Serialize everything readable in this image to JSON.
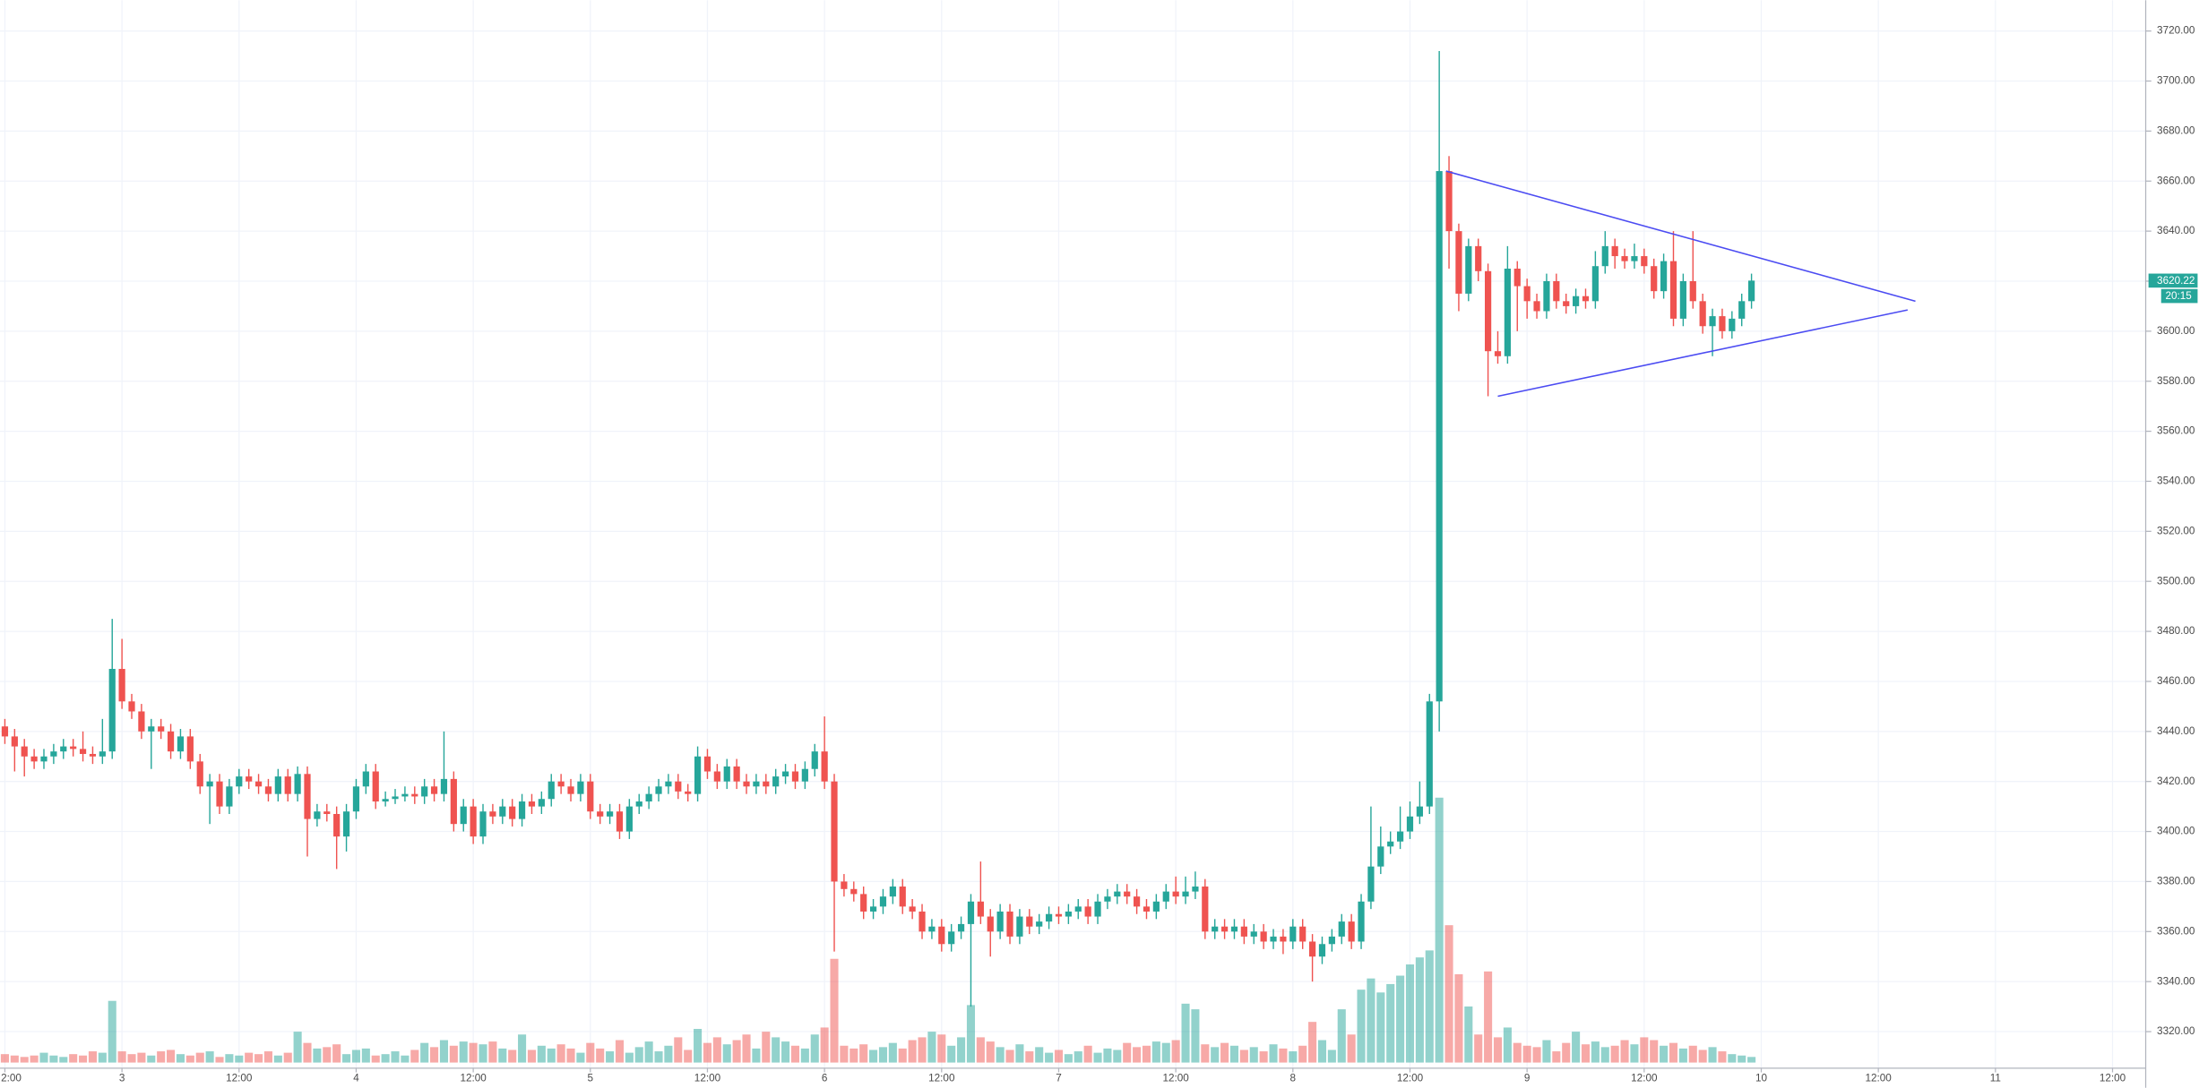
{
  "chart_data": {
    "type": "candlestick",
    "countdown": "20:15",
    "up_color": "#26a69a",
    "down_color": "#ef5350",
    "grid": true,
    "grid_color": "#f0f3fa",
    "trendline_color": "#4b4bf2",
    "xlim": [
      11.5,
      231.4
    ],
    "ylim": [
      3305.4,
      3732.3
    ],
    "xticks": [
      {
        "value": 12,
        "label": "2:00"
      },
      {
        "value": 24,
        "label": "3"
      },
      {
        "value": 36,
        "label": "12:00"
      },
      {
        "value": 48,
        "label": "4"
      },
      {
        "value": 60,
        "label": "12:00"
      },
      {
        "value": 72,
        "label": "5"
      },
      {
        "value": 84,
        "label": "12:00"
      },
      {
        "value": 96,
        "label": "6"
      },
      {
        "value": 108,
        "label": "12:00"
      },
      {
        "value": 120,
        "label": "7"
      },
      {
        "value": 132,
        "label": "12:00"
      },
      {
        "value": 144,
        "label": "8"
      },
      {
        "value": 156,
        "label": "12:00"
      },
      {
        "value": 168,
        "label": "9"
      },
      {
        "value": 180,
        "label": "12:00"
      },
      {
        "value": 192,
        "label": "10"
      },
      {
        "value": 204,
        "label": "12:00"
      },
      {
        "value": 216,
        "label": "11"
      },
      {
        "value": 228,
        "label": "12:00"
      }
    ],
    "yticks": [
      {
        "value": 3320,
        "label": "3320.00"
      },
      {
        "value": 3340,
        "label": "3340.00"
      },
      {
        "value": 3360,
        "label": "3360.00"
      },
      {
        "value": 3380,
        "label": "3380.00"
      },
      {
        "value": 3400,
        "label": "3400.00"
      },
      {
        "value": 3420,
        "label": "3420.00"
      },
      {
        "value": 3440,
        "label": "3440.00"
      },
      {
        "value": 3460,
        "label": "3460.00"
      },
      {
        "value": 3480,
        "label": "3480.00"
      },
      {
        "value": 3500,
        "label": "3500.00"
      },
      {
        "value": 3520,
        "label": "3520.00"
      },
      {
        "value": 3540,
        "label": "3540.00"
      },
      {
        "value": 3560,
        "label": "3560.00"
      },
      {
        "value": 3580,
        "label": "3580.00"
      },
      {
        "value": 3600,
        "label": "3600.00"
      },
      {
        "value": 3620,
        "label": "3620.00"
      },
      {
        "value": 3640,
        "label": "3640.00"
      },
      {
        "value": 3660,
        "label": "3660.00"
      },
      {
        "value": 3680,
        "label": "3680.00"
      },
      {
        "value": 3700,
        "label": "3700.00"
      },
      {
        "value": 3720,
        "label": "3720.00"
      }
    ],
    "x": [
      12,
      13,
      14,
      15,
      16,
      17,
      18,
      19,
      20,
      21,
      22,
      23,
      24,
      25,
      26,
      27,
      28,
      29,
      30,
      31,
      32,
      33,
      34,
      35,
      36,
      37,
      38,
      39,
      40,
      41,
      42,
      43,
      44,
      45,
      46,
      47,
      48,
      49,
      50,
      51,
      52,
      53,
      54,
      55,
      56,
      57,
      58,
      59,
      60,
      61,
      62,
      63,
      64,
      65,
      66,
      67,
      68,
      69,
      70,
      71,
      72,
      73,
      74,
      75,
      76,
      77,
      78,
      79,
      80,
      81,
      82,
      83,
      84,
      85,
      86,
      87,
      88,
      89,
      90,
      91,
      92,
      93,
      94,
      95,
      96,
      97,
      98,
      99,
      100,
      101,
      102,
      103,
      104,
      105,
      106,
      107,
      108,
      109,
      110,
      111,
      112,
      113,
      114,
      115,
      116,
      117,
      118,
      119,
      120,
      121,
      122,
      123,
      124,
      125,
      126,
      127,
      128,
      129,
      130,
      131,
      132,
      133,
      134,
      135,
      136,
      137,
      138,
      139,
      140,
      141,
      142,
      143,
      144,
      145,
      146,
      147,
      148,
      149,
      150,
      151,
      152,
      153,
      154,
      155,
      156,
      157,
      158,
      159,
      160,
      161,
      162,
      163,
      164,
      165,
      166,
      167,
      168,
      169,
      170,
      171,
      172,
      173,
      174,
      175,
      176,
      177,
      178,
      179,
      180,
      181,
      182,
      183,
      184,
      185,
      186,
      187,
      188,
      189,
      190,
      191
    ],
    "ohlc": [
      [
        3442,
        3445,
        3435,
        3438
      ],
      [
        3438,
        3441,
        3424,
        3434
      ],
      [
        3434,
        3437,
        3422,
        3430
      ],
      [
        3430,
        3433,
        3425,
        3428
      ],
      [
        3428,
        3433,
        3425,
        3430
      ],
      [
        3430,
        3435,
        3427,
        3432
      ],
      [
        3432,
        3437,
        3429,
        3434
      ],
      [
        3434,
        3437,
        3430,
        3433
      ],
      [
        3433,
        3440,
        3428,
        3431
      ],
      [
        3431,
        3434,
        3427,
        3430
      ],
      [
        3430,
        3445,
        3427,
        3432
      ],
      [
        3432,
        3485,
        3429,
        3465
      ],
      [
        3465,
        3477,
        3449,
        3452
      ],
      [
        3452,
        3455,
        3445,
        3448
      ],
      [
        3448,
        3451,
        3437,
        3440
      ],
      [
        3440,
        3445,
        3425,
        3442
      ],
      [
        3442,
        3445,
        3437,
        3440
      ],
      [
        3440,
        3443,
        3429,
        3432
      ],
      [
        3432,
        3441,
        3429,
        3438
      ],
      [
        3438,
        3441,
        3425,
        3428
      ],
      [
        3428,
        3431,
        3415,
        3418
      ],
      [
        3418,
        3423,
        3403,
        3420
      ],
      [
        3420,
        3423,
        3407,
        3410
      ],
      [
        3410,
        3421,
        3407,
        3418
      ],
      [
        3418,
        3425,
        3415,
        3422
      ],
      [
        3422,
        3425,
        3417,
        3420
      ],
      [
        3420,
        3423,
        3415,
        3418
      ],
      [
        3418,
        3421,
        3412,
        3415
      ],
      [
        3415,
        3425,
        3412,
        3422
      ],
      [
        3422,
        3425,
        3412,
        3415
      ],
      [
        3415,
        3426,
        3412,
        3423
      ],
      [
        3423,
        3426,
        3390,
        3405
      ],
      [
        3405,
        3411,
        3402,
        3408
      ],
      [
        3408,
        3411,
        3404,
        3407
      ],
      [
        3407,
        3410,
        3385,
        3398
      ],
      [
        3398,
        3411,
        3392,
        3408
      ],
      [
        3408,
        3421,
        3405,
        3418
      ],
      [
        3418,
        3427,
        3415,
        3424
      ],
      [
        3424,
        3427,
        3409,
        3412
      ],
      [
        3412,
        3416,
        3410,
        3413
      ],
      [
        3413,
        3417,
        3411,
        3414
      ],
      [
        3414,
        3418,
        3412,
        3415
      ],
      [
        3415,
        3418,
        3411,
        3414
      ],
      [
        3414,
        3421,
        3411,
        3418
      ],
      [
        3418,
        3421,
        3412,
        3415
      ],
      [
        3415,
        3440,
        3412,
        3421
      ],
      [
        3421,
        3424,
        3400,
        3403
      ],
      [
        3403,
        3413,
        3400,
        3410
      ],
      [
        3410,
        3413,
        3395,
        3398
      ],
      [
        3398,
        3411,
        3395,
        3408
      ],
      [
        3408,
        3411,
        3403,
        3406
      ],
      [
        3406,
        3413,
        3403,
        3410
      ],
      [
        3410,
        3413,
        3402,
        3405
      ],
      [
        3405,
        3415,
        3402,
        3412
      ],
      [
        3412,
        3415,
        3407,
        3410
      ],
      [
        3410,
        3416,
        3407,
        3413
      ],
      [
        3413,
        3423,
        3410,
        3420
      ],
      [
        3420,
        3423,
        3415,
        3418
      ],
      [
        3418,
        3421,
        3412,
        3415
      ],
      [
        3415,
        3423,
        3412,
        3420
      ],
      [
        3420,
        3423,
        3405,
        3408
      ],
      [
        3408,
        3411,
        3403,
        3406
      ],
      [
        3406,
        3411,
        3403,
        3408
      ],
      [
        3408,
        3411,
        3397,
        3400
      ],
      [
        3400,
        3413,
        3397,
        3410
      ],
      [
        3410,
        3415,
        3407,
        3412
      ],
      [
        3412,
        3418,
        3409,
        3415
      ],
      [
        3415,
        3421,
        3412,
        3418
      ],
      [
        3418,
        3423,
        3415,
        3420
      ],
      [
        3420,
        3423,
        3413,
        3416
      ],
      [
        3416,
        3419,
        3412,
        3415
      ],
      [
        3415,
        3434,
        3412,
        3430
      ],
      [
        3430,
        3433,
        3421,
        3424
      ],
      [
        3424,
        3427,
        3417,
        3420
      ],
      [
        3420,
        3429,
        3417,
        3426
      ],
      [
        3426,
        3429,
        3417,
        3420
      ],
      [
        3420,
        3423,
        3415,
        3418
      ],
      [
        3418,
        3423,
        3415,
        3420
      ],
      [
        3420,
        3423,
        3415,
        3418
      ],
      [
        3418,
        3425,
        3415,
        3422
      ],
      [
        3422,
        3427,
        3419,
        3424
      ],
      [
        3424,
        3427,
        3417,
        3420
      ],
      [
        3420,
        3428,
        3417,
        3425
      ],
      [
        3425,
        3435,
        3422,
        3432
      ],
      [
        3432,
        3446,
        3417,
        3420
      ],
      [
        3420,
        3423,
        3352,
        3380
      ],
      [
        3380,
        3383,
        3374,
        3377
      ],
      [
        3377,
        3380,
        3372,
        3375
      ],
      [
        3375,
        3378,
        3365,
        3368
      ],
      [
        3368,
        3373,
        3365,
        3370
      ],
      [
        3370,
        3377,
        3367,
        3374
      ],
      [
        3374,
        3381,
        3371,
        3378
      ],
      [
        3378,
        3381,
        3367,
        3370
      ],
      [
        3370,
        3373,
        3365,
        3368
      ],
      [
        3368,
        3371,
        3357,
        3360
      ],
      [
        3360,
        3365,
        3357,
        3362
      ],
      [
        3362,
        3365,
        3352,
        3355
      ],
      [
        3355,
        3363,
        3352,
        3360
      ],
      [
        3360,
        3366,
        3357,
        3363
      ],
      [
        3363,
        3375,
        3330,
        3372
      ],
      [
        3372,
        3388,
        3363,
        3366
      ],
      [
        3366,
        3369,
        3350,
        3360
      ],
      [
        3360,
        3371,
        3357,
        3368
      ],
      [
        3368,
        3371,
        3355,
        3358
      ],
      [
        3358,
        3369,
        3355,
        3366
      ],
      [
        3366,
        3369,
        3359,
        3362
      ],
      [
        3362,
        3367,
        3359,
        3364
      ],
      [
        3364,
        3370,
        3361,
        3367
      ],
      [
        3367,
        3370,
        3363,
        3366
      ],
      [
        3366,
        3371,
        3363,
        3368
      ],
      [
        3368,
        3373,
        3365,
        3370
      ],
      [
        3370,
        3373,
        3363,
        3366
      ],
      [
        3366,
        3375,
        3363,
        3372
      ],
      [
        3372,
        3377,
        3369,
        3374
      ],
      [
        3374,
        3379,
        3371,
        3376
      ],
      [
        3376,
        3379,
        3371,
        3374
      ],
      [
        3374,
        3377,
        3367,
        3370
      ],
      [
        3370,
        3373,
        3365,
        3368
      ],
      [
        3368,
        3375,
        3365,
        3372
      ],
      [
        3372,
        3379,
        3369,
        3376
      ],
      [
        3376,
        3382,
        3371,
        3374
      ],
      [
        3374,
        3382,
        3371,
        3376
      ],
      [
        3376,
        3384,
        3373,
        3378
      ],
      [
        3378,
        3381,
        3357,
        3360
      ],
      [
        3360,
        3365,
        3357,
        3362
      ],
      [
        3362,
        3365,
        3357,
        3360
      ],
      [
        3360,
        3365,
        3357,
        3362
      ],
      [
        3362,
        3365,
        3355,
        3358
      ],
      [
        3358,
        3363,
        3355,
        3360
      ],
      [
        3360,
        3363,
        3353,
        3356
      ],
      [
        3356,
        3361,
        3353,
        3358
      ],
      [
        3358,
        3361,
        3351,
        3356
      ],
      [
        3356,
        3365,
        3353,
        3362
      ],
      [
        3362,
        3365,
        3353,
        3356
      ],
      [
        3356,
        3359,
        3340,
        3350
      ],
      [
        3350,
        3358,
        3347,
        3355
      ],
      [
        3355,
        3361,
        3352,
        3358
      ],
      [
        3358,
        3367,
        3355,
        3364
      ],
      [
        3364,
        3367,
        3353,
        3356
      ],
      [
        3356,
        3375,
        3353,
        3372
      ],
      [
        3372,
        3410,
        3369,
        3386
      ],
      [
        3386,
        3402,
        3383,
        3394
      ],
      [
        3394,
        3400,
        3391,
        3396
      ],
      [
        3396,
        3410,
        3393,
        3400
      ],
      [
        3400,
        3412,
        3397,
        3406
      ],
      [
        3406,
        3420,
        3403,
        3410
      ],
      [
        3410,
        3455,
        3407,
        3452
      ],
      [
        3452,
        3712,
        3440,
        3664
      ],
      [
        3664,
        3670,
        3625,
        3640
      ],
      [
        3640,
        3643,
        3608,
        3615
      ],
      [
        3615,
        3637,
        3612,
        3634
      ],
      [
        3634,
        3637,
        3620,
        3624
      ],
      [
        3624,
        3627,
        3574,
        3592
      ],
      [
        3592,
        3600,
        3587,
        3590
      ],
      [
        3590,
        3634,
        3587,
        3625
      ],
      [
        3625,
        3628,
        3600,
        3618
      ],
      [
        3618,
        3621,
        3605,
        3612
      ],
      [
        3612,
        3615,
        3605,
        3608
      ],
      [
        3608,
        3623,
        3605,
        3620
      ],
      [
        3620,
        3623,
        3609,
        3612
      ],
      [
        3612,
        3615,
        3607,
        3610
      ],
      [
        3610,
        3617,
        3607,
        3614
      ],
      [
        3614,
        3617,
        3609,
        3612
      ],
      [
        3612,
        3632,
        3609,
        3626
      ],
      [
        3626,
        3640,
        3623,
        3634
      ],
      [
        3634,
        3637,
        3625,
        3630
      ],
      [
        3630,
        3633,
        3625,
        3628
      ],
      [
        3628,
        3635,
        3625,
        3630
      ],
      [
        3630,
        3633,
        3623,
        3626
      ],
      [
        3626,
        3629,
        3613,
        3616
      ],
      [
        3616,
        3631,
        3613,
        3628
      ],
      [
        3628,
        3640,
        3602,
        3605
      ],
      [
        3605,
        3623,
        3602,
        3620
      ],
      [
        3620,
        3640,
        3609,
        3612
      ],
      [
        3612,
        3615,
        3599,
        3602
      ],
      [
        3602,
        3609,
        3590,
        3606
      ],
      [
        3606,
        3609,
        3597,
        3600
      ],
      [
        3600,
        3608,
        3597,
        3605
      ],
      [
        3605,
        3615,
        3602,
        3612
      ],
      [
        3612,
        3623,
        3609,
        3620.22
      ]
    ],
    "volume": [
      6,
      5,
      4,
      5,
      7,
      5,
      4,
      6,
      5,
      8,
      7,
      44,
      8,
      6,
      7,
      5,
      8,
      9,
      6,
      5,
      7,
      8,
      4,
      6,
      5,
      7,
      6,
      8,
      5,
      7,
      22,
      14,
      10,
      11,
      13,
      6,
      9,
      10,
      5,
      6,
      8,
      5,
      9,
      14,
      11,
      16,
      12,
      15,
      14,
      13,
      15,
      10,
      9,
      20,
      9,
      12,
      10,
      13,
      10,
      7,
      14,
      10,
      8,
      16,
      7,
      11,
      15,
      8,
      12,
      18,
      9,
      24,
      14,
      18,
      13,
      16,
      20,
      10,
      22,
      18,
      15,
      12,
      10,
      20,
      25,
      74,
      12,
      10,
      13,
      9,
      11,
      14,
      10,
      16,
      18,
      22,
      20,
      12,
      18,
      41,
      18,
      15,
      11,
      9,
      13,
      8,
      11,
      7,
      9,
      6,
      8,
      12,
      7,
      10,
      9,
      14,
      11,
      12,
      15,
      14,
      16,
      42,
      38,
      13,
      11,
      14,
      12,
      9,
      11,
      8,
      13,
      10,
      8,
      12,
      29,
      16,
      9,
      38,
      20,
      52,
      60,
      50,
      56,
      62,
      70,
      75,
      80,
      189,
      98,
      63,
      40,
      20,
      65,
      18,
      25,
      14,
      12,
      11,
      16,
      8,
      14,
      22,
      13,
      15,
      11,
      12,
      16,
      13,
      18,
      16,
      12,
      14,
      10,
      12,
      9,
      11,
      8,
      6,
      5,
      4
    ],
    "trendlines": [
      [
        [
          159.7,
          3664
        ],
        [
          207.8,
          3612
        ]
      ],
      [
        [
          165,
          3574
        ],
        [
          207,
          3608.5
        ]
      ]
    ]
  }
}
